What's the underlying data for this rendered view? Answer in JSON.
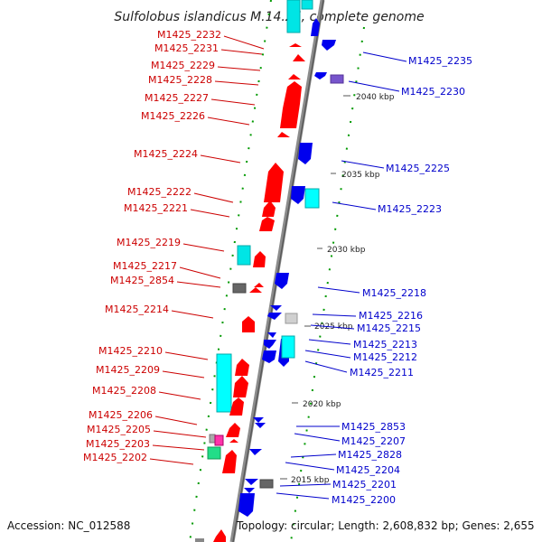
{
  "title": "Sulfolobus islandicus M.14.25, complete genome",
  "accession": "Accession: NC_012588",
  "summary": "Topology: circular; Length: 2,608,832 bp; Genes: 2,655",
  "colors": {
    "forward": "#ff0000",
    "reverse": "#0000ee",
    "rna": "#00ffff",
    "other": "#888888",
    "pseudo": "#ff33aa",
    "green_misc": "#22dd88",
    "tick": "#008800",
    "backbone": "#8c8c8c"
  },
  "ticks": [
    {
      "text": "2040 kbp"
    },
    {
      "text": "2035 kbp"
    },
    {
      "text": "2030 kbp"
    },
    {
      "text": "2025 kbp"
    },
    {
      "text": "2020 kbp"
    },
    {
      "text": "2015 kbp"
    }
  ],
  "labels_left": [
    "M1425_2232",
    "M1425_2231",
    "M1425_2229",
    "M1425_2228",
    "M1425_2227",
    "M1425_2226",
    "M1425_2224",
    "M1425_2222",
    "M1425_2221",
    "M1425_2219",
    "M1425_2217",
    "M1425_2854",
    "M1425_2214",
    "M1425_2210",
    "M1425_2209",
    "M1425_2208",
    "M1425_2206",
    "M1425_2205",
    "M1425_2203",
    "M1425_2202"
  ],
  "labels_right": [
    "M1425_2235",
    "M1425_2230",
    "M1425_2225",
    "M1425_2223",
    "M1425_2218",
    "M1425_2216",
    "M1425_2215",
    "M1425_2213",
    "M1425_2212",
    "M1425_2211",
    "M1425_2853",
    "M1425_2207",
    "M1425_2828",
    "M1425_2204",
    "M1425_2201",
    "M1425_2200"
  ]
}
